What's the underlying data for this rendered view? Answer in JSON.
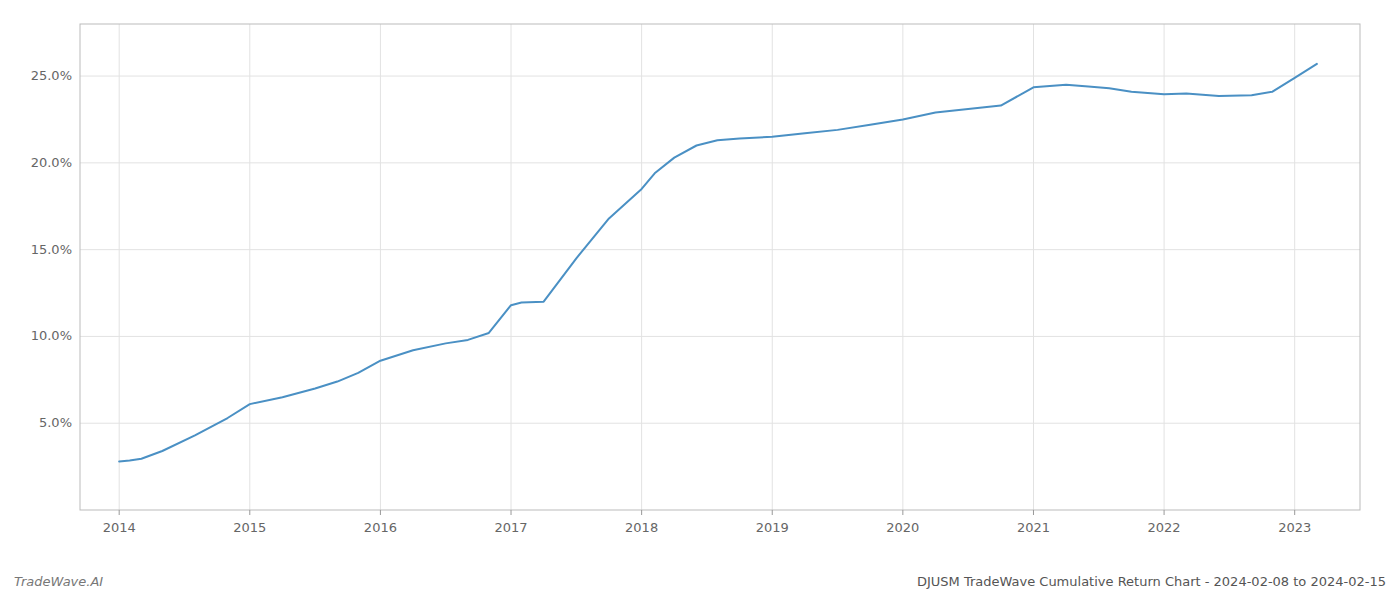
{
  "chart_data": {
    "type": "line",
    "title": "DJUSM TradeWave Cumulative Return Chart - 2024-02-08 to 2024-02-15",
    "annotations": [
      "TradeWave.AI"
    ],
    "x": [
      2014.0,
      2014.08,
      2014.17,
      2014.33,
      2014.58,
      2014.83,
      2015.0,
      2015.25,
      2015.5,
      2015.67,
      2015.83,
      2016.0,
      2016.25,
      2016.5,
      2016.67,
      2016.83,
      2017.0,
      2017.08,
      2017.25,
      2017.5,
      2017.75,
      2018.0,
      2018.1,
      2018.25,
      2018.42,
      2018.58,
      2018.75,
      2019.0,
      2019.25,
      2019.5,
      2019.75,
      2020.0,
      2020.25,
      2020.5,
      2020.75,
      2021.0,
      2021.25,
      2021.42,
      2021.58,
      2021.75,
      2022.0,
      2022.17,
      2022.42,
      2022.67,
      2022.83,
      2023.0,
      2023.17
    ],
    "values": [
      2.8,
      2.85,
      2.95,
      3.4,
      4.3,
      5.3,
      6.1,
      6.5,
      7.0,
      7.4,
      7.9,
      8.6,
      9.2,
      9.6,
      9.8,
      10.2,
      11.8,
      11.95,
      12.0,
      14.5,
      16.8,
      18.5,
      19.4,
      20.3,
      21.0,
      21.3,
      21.4,
      21.5,
      21.7,
      21.9,
      22.2,
      22.5,
      22.9,
      23.1,
      23.3,
      24.35,
      24.5,
      24.4,
      24.3,
      24.1,
      23.95,
      24.0,
      23.85,
      23.9,
      24.1,
      24.9,
      25.7
    ],
    "color": "#4a90c4",
    "xlim": [
      2013.7,
      2023.5
    ],
    "ylim": [
      0,
      28
    ],
    "xticks": [
      2014,
      2015,
      2016,
      2017,
      2018,
      2019,
      2020,
      2021,
      2022,
      2023
    ],
    "yticks": [
      {
        "value": 5.0,
        "label": "5.0%"
      },
      {
        "value": 10.0,
        "label": "10.0%"
      },
      {
        "value": 15.0,
        "label": "15.0%"
      },
      {
        "value": 20.0,
        "label": "20.0%"
      },
      {
        "value": 25.0,
        "label": "25.0%"
      }
    ],
    "grid": true
  }
}
